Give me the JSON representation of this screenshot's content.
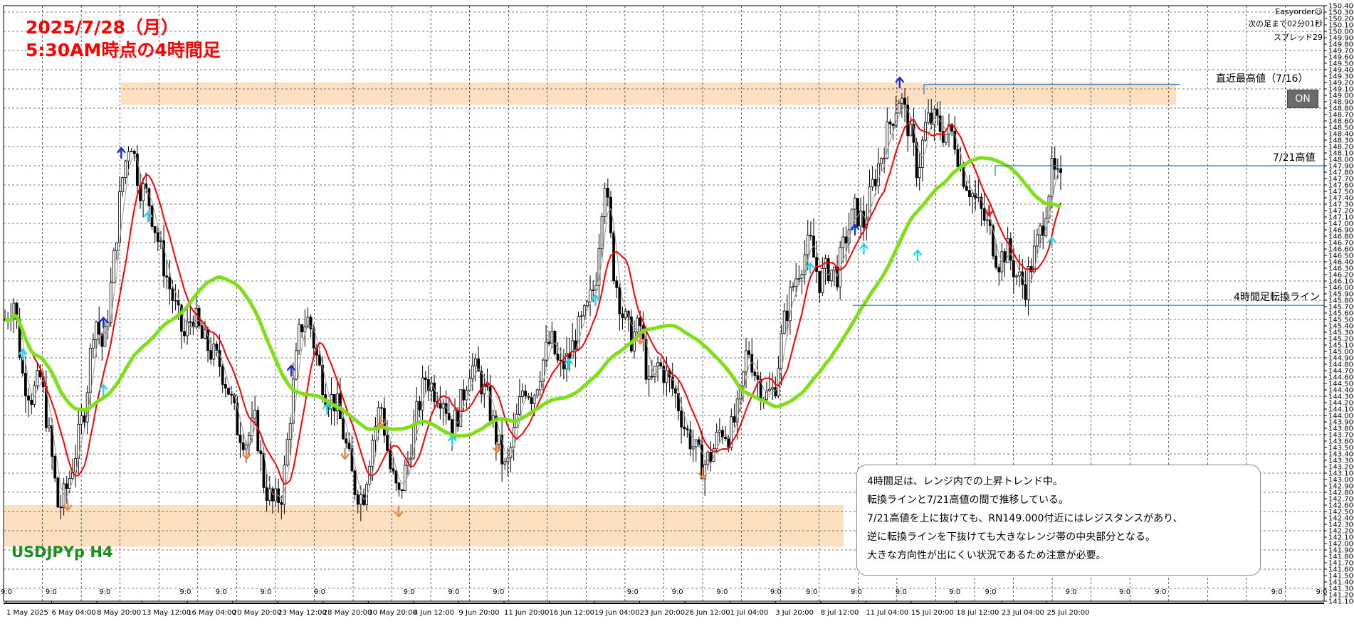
{
  "header": {
    "title_line1": "2025/7/28（月）",
    "title_line2": "5:30AM時点の4時間足"
  },
  "symbol": "USDJPYp H4",
  "hud": {
    "ea_name": "Easyorder☺",
    "countdown": "次の足まで02分01秒",
    "spread": "スプレッド29",
    "on_button": "ON"
  },
  "level_labels": {
    "recent_high": "直近最高値（7/16）",
    "high_7_21": "7/21高値",
    "turn_line": "4時間足転換ライン"
  },
  "commentary": [
    "4時間足は、レンジ内での上昇トレンド中。",
    "転換ラインと7/21高値の間で推移している。",
    "7/21高値を上に抜けても、RN149.000付近にはレジスタンスがあり、",
    "逆に転換ラインを下抜けても大きなレンジ帯の中央部分となる。",
    "大きな方向性が出にくい状況であるため注意が必要。"
  ],
  "colors": {
    "candle": "#000000",
    "ma_fast": "#ff0000",
    "ma_slow": "#7fe01a",
    "zone": "#fde0bf",
    "level_line": "#1e7bd6",
    "arrow_up_dark": "#1a2fd0",
    "arrow_up_light": "#2ad4e8",
    "arrow_down_dark": "#d42020",
    "arrow_down_light": "#e88a4a",
    "title": "#ff0000",
    "symbol": "#1a8f1a"
  },
  "chart_data": {
    "type": "candlestick",
    "symbol": "USDJPYp",
    "timeframe": "H4",
    "ylim": [
      141.1,
      150.4
    ],
    "y_ticks": [
      "150.400",
      "150.300",
      "150.200",
      "150.100",
      "150.000",
      "149.900",
      "149.800",
      "149.700",
      "149.600",
      "149.500",
      "149.400",
      "149.300",
      "149.200",
      "149.100",
      "149.000",
      "148.900",
      "148.800",
      "148.700",
      "148.600",
      "148.500",
      "148.400",
      "148.300",
      "148.200",
      "148.100",
      "148.000",
      "147.900",
      "147.800",
      "147.700",
      "147.600",
      "147.500",
      "147.400",
      "147.300",
      "147.200",
      "147.100",
      "147.000",
      "146.900",
      "146.800",
      "146.700",
      "146.600",
      "146.500",
      "146.400",
      "146.300",
      "146.200",
      "146.100",
      "146.000",
      "145.900",
      "145.800",
      "145.700",
      "145.600",
      "145.500",
      "145.400",
      "145.300",
      "145.200",
      "145.100",
      "145.000",
      "144.900",
      "144.800",
      "144.700",
      "144.600",
      "144.500",
      "144.400",
      "144.300",
      "144.200",
      "144.100",
      "144.000",
      "143.900",
      "143.800",
      "143.700",
      "143.600",
      "143.500",
      "143.400",
      "143.300",
      "143.200",
      "143.100",
      "143.000",
      "142.900",
      "142.800",
      "142.700",
      "142.600",
      "142.500",
      "142.400",
      "142.300",
      "142.200",
      "142.100",
      "142.000",
      "141.900",
      "141.800",
      "141.700",
      "141.600",
      "141.500",
      "141.400",
      "141.300",
      "141.200",
      "141.100"
    ],
    "x_ticks": [
      "1 May 2025",
      "6 May 04:00",
      "8 May 20:00",
      "13 May 12:00",
      "16 May 04:00",
      "20 May 20:00",
      "23 May 12:00",
      "28 May 20:00",
      "30 May 20:00",
      "4 Jun 12:00",
      "9 Jun 20:00",
      "11 Jun 20:00",
      "16 Jun 12:00",
      "19 Jun 04:00",
      "23 Jun 20:00",
      "26 Jun 12:00",
      "1 Jul 04:00",
      "3 Jul 20:00",
      "8 Jul 12:00",
      "11 Jul 04:00",
      "15 Jul 20:00",
      "18 Jul 12:00",
      "23 Jul 04:00",
      "25 Jul 20:00"
    ],
    "session_marks": [
      {
        "label": "9:0",
        "x": 0.0
      },
      {
        "label": "9:0",
        "x": 0.05
      },
      {
        "label": "9:0",
        "x": 0.11
      },
      {
        "label": "9:0",
        "x": 0.2
      },
      {
        "label": "9:0",
        "x": 0.24
      },
      {
        "label": "9:0",
        "x": 0.29
      },
      {
        "label": "9:0",
        "x": 0.35
      },
      {
        "label": "9:0",
        "x": 0.45
      },
      {
        "label": "9:0",
        "x": 0.5
      },
      {
        "label": "9:0",
        "x": 0.55
      },
      {
        "label": "9:0",
        "x": 0.7
      },
      {
        "label": "9:0",
        "x": 0.75
      },
      {
        "label": "9:0",
        "x": 0.8
      },
      {
        "label": "9:0",
        "x": 0.86
      },
      {
        "label": "9:0",
        "x": 0.9
      },
      {
        "label": "9:0",
        "x": 0.95
      },
      {
        "label": "9:0",
        "x": 1.0
      },
      {
        "label": "9:0",
        "x": 1.06
      },
      {
        "label": "9:0",
        "x": 1.1
      },
      {
        "label": "9:0",
        "x": 1.19
      },
      {
        "label": "9:0",
        "x": 1.25
      },
      {
        "label": "9:0",
        "x": 1.29
      },
      {
        "label": "9:0",
        "x": 1.42
      },
      {
        "label": "9:0",
        "x": 1.47
      }
    ],
    "key_levels": {
      "recent_high_7_16": 149.17,
      "high_7_21": 147.9,
      "turn_line_h4": 145.72
    },
    "zones": [
      {
        "from": 148.85,
        "to": 149.2
      },
      {
        "from": 141.95,
        "to": 142.6
      }
    ],
    "price_path": [
      [
        0,
        145.5
      ],
      [
        0.01,
        145.8
      ],
      [
        0.02,
        144.6
      ],
      [
        0.03,
        144.3
      ],
      [
        0.04,
        144.6
      ],
      [
        0.05,
        143.6
      ],
      [
        0.06,
        142.5
      ],
      [
        0.07,
        142.9
      ],
      [
        0.08,
        143.5
      ],
      [
        0.09,
        144.2
      ],
      [
        0.1,
        145.6
      ],
      [
        0.11,
        145.0
      ],
      [
        0.12,
        146.2
      ],
      [
        0.13,
        147.6
      ],
      [
        0.14,
        148.4
      ],
      [
        0.15,
        147.6
      ],
      [
        0.16,
        147.4
      ],
      [
        0.17,
        146.8
      ],
      [
        0.18,
        146.2
      ],
      [
        0.19,
        145.7
      ],
      [
        0.2,
        145.2
      ],
      [
        0.21,
        145.6
      ],
      [
        0.22,
        145.2
      ],
      [
        0.23,
        145.0
      ],
      [
        0.24,
        144.8
      ],
      [
        0.25,
        144.4
      ],
      [
        0.26,
        143.8
      ],
      [
        0.27,
        143.6
      ],
      [
        0.28,
        143.9
      ],
      [
        0.29,
        142.9
      ],
      [
        0.3,
        142.6
      ],
      [
        0.31,
        142.8
      ],
      [
        0.32,
        144.2
      ],
      [
        0.33,
        145.4
      ],
      [
        0.34,
        145.5
      ],
      [
        0.35,
        144.8
      ],
      [
        0.36,
        144.3
      ],
      [
        0.37,
        144.2
      ],
      [
        0.38,
        143.6
      ],
      [
        0.39,
        142.9
      ],
      [
        0.4,
        142.7
      ],
      [
        0.41,
        143.6
      ],
      [
        0.42,
        144.2
      ],
      [
        0.43,
        143.2
      ],
      [
        0.44,
        142.7
      ],
      [
        0.45,
        143.3
      ],
      [
        0.46,
        144.0
      ],
      [
        0.47,
        144.6
      ],
      [
        0.48,
        144.4
      ],
      [
        0.49,
        144.3
      ],
      [
        0.5,
        143.8
      ],
      [
        0.51,
        144.2
      ],
      [
        0.52,
        144.8
      ],
      [
        0.53,
        144.6
      ],
      [
        0.54,
        144.2
      ],
      [
        0.55,
        143.6
      ],
      [
        0.56,
        143.1
      ],
      [
        0.57,
        143.8
      ],
      [
        0.58,
        144.5
      ],
      [
        0.59,
        144.3
      ],
      [
        0.6,
        144.8
      ],
      [
        0.61,
        145.2
      ],
      [
        0.62,
        144.7
      ],
      [
        0.63,
        144.9
      ],
      [
        0.64,
        145.3
      ],
      [
        0.65,
        145.6
      ],
      [
        0.66,
        146.1
      ],
      [
        0.67,
        147.8
      ],
      [
        0.68,
        146.3
      ],
      [
        0.69,
        145.6
      ],
      [
        0.7,
        145.2
      ],
      [
        0.71,
        145.4
      ],
      [
        0.72,
        144.4
      ],
      [
        0.73,
        144.8
      ],
      [
        0.74,
        144.6
      ],
      [
        0.75,
        144.3
      ],
      [
        0.76,
        143.8
      ],
      [
        0.77,
        143.5
      ],
      [
        0.78,
        143.2
      ],
      [
        0.79,
        143.4
      ],
      [
        0.8,
        143.8
      ],
      [
        0.81,
        143.7
      ],
      [
        0.82,
        144.1
      ],
      [
        0.83,
        145.1
      ],
      [
        0.84,
        144.6
      ],
      [
        0.85,
        144.3
      ],
      [
        0.86,
        144.4
      ],
      [
        0.87,
        145.4
      ],
      [
        0.88,
        146.0
      ],
      [
        0.89,
        146.4
      ],
      [
        0.9,
        146.7
      ],
      [
        0.91,
        146.1
      ],
      [
        0.92,
        146.3
      ],
      [
        0.93,
        146.2
      ],
      [
        0.94,
        146.8
      ],
      [
        0.95,
        147.2
      ],
      [
        0.96,
        147.0
      ],
      [
        0.97,
        147.6
      ],
      [
        0.98,
        148.1
      ],
      [
        0.99,
        148.6
      ],
      [
        1.0,
        149.0
      ],
      [
        1.01,
        148.5
      ],
      [
        1.02,
        147.8
      ],
      [
        1.03,
        148.6
      ],
      [
        1.04,
        148.6
      ],
      [
        1.05,
        148.4
      ],
      [
        1.06,
        148.4
      ],
      [
        1.07,
        147.8
      ],
      [
        1.08,
        147.5
      ],
      [
        1.09,
        147.2
      ],
      [
        1.1,
        146.9
      ],
      [
        1.11,
        146.4
      ],
      [
        1.12,
        146.6
      ],
      [
        1.13,
        146.2
      ],
      [
        1.14,
        146.0
      ],
      [
        1.15,
        146.5
      ],
      [
        1.16,
        147.0
      ],
      [
        1.17,
        147.8
      ],
      [
        1.18,
        147.6
      ]
    ]
  }
}
